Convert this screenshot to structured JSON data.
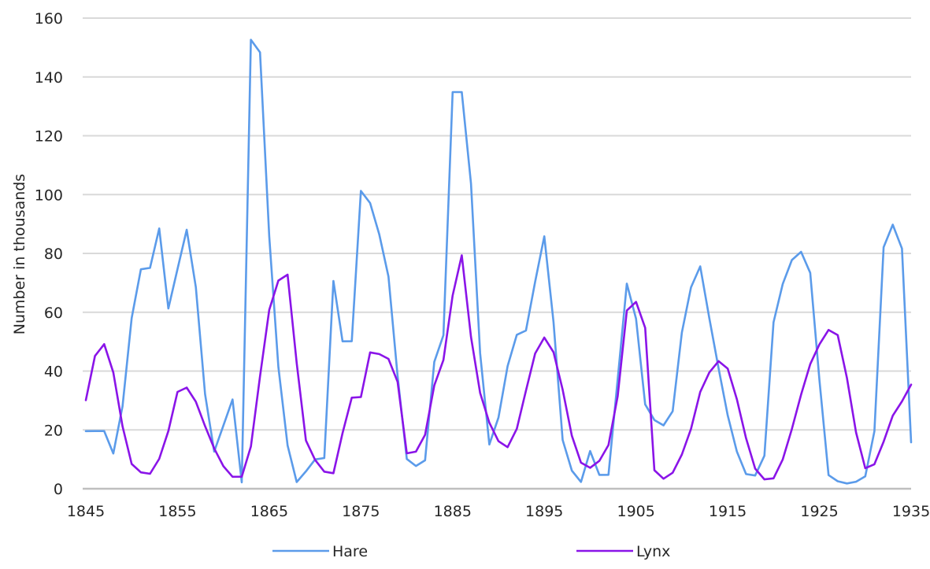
{
  "chart_data": {
    "type": "line",
    "title": "",
    "xlabel": "",
    "ylabel": "Number in thousands",
    "xlim": [
      1845,
      1935
    ],
    "ylim": [
      0,
      160
    ],
    "x_ticks": [
      "1845",
      "1855",
      "1865",
      "1875",
      "1885",
      "1895",
      "1905",
      "1915",
      "1925",
      "1935"
    ],
    "y_ticks": [
      "0",
      "20",
      "40",
      "60",
      "80",
      "100",
      "120",
      "140",
      "160"
    ],
    "grid": true,
    "legend_position": "bottom",
    "x": [
      1845,
      1846,
      1847,
      1848,
      1849,
      1850,
      1851,
      1852,
      1853,
      1854,
      1855,
      1856,
      1857,
      1858,
      1859,
      1860,
      1861,
      1862,
      1863,
      1864,
      1865,
      1866,
      1867,
      1868,
      1869,
      1870,
      1871,
      1872,
      1873,
      1874,
      1875,
      1876,
      1877,
      1878,
      1879,
      1880,
      1881,
      1882,
      1883,
      1884,
      1885,
      1886,
      1887,
      1888,
      1889,
      1890,
      1891,
      1892,
      1893,
      1894,
      1895,
      1896,
      1897,
      1898,
      1899,
      1900,
      1901,
      1902,
      1903,
      1904,
      1905,
      1906,
      1907,
      1908,
      1909,
      1910,
      1911,
      1912,
      1913,
      1914,
      1915,
      1916,
      1917,
      1918,
      1919,
      1920,
      1921,
      1922,
      1923,
      1924,
      1925,
      1926,
      1927,
      1928,
      1929,
      1930,
      1931,
      1932,
      1933,
      1934,
      1935
    ],
    "series": [
      {
        "name": "Hare",
        "color": "#5b9bea",
        "values": [
          19.58,
          19.6,
          19.61,
          11.99,
          28.04,
          58.0,
          74.6,
          75.09,
          88.48,
          61.28,
          74.67,
          88.06,
          68.51,
          32.19,
          12.64,
          21.49,
          30.35,
          2.18,
          152.65,
          148.36,
          85.81,
          41.41,
          14.75,
          2.28,
          5.91,
          9.95,
          10.44,
          70.64,
          50.12,
          50.13,
          101.25,
          97.12,
          86.51,
          72.17,
          38.32,
          10.11,
          7.74,
          9.67,
          43.12,
          52.21,
          134.85,
          134.86,
          103.79,
          46.1,
          15.03,
          24.2,
          41.65,
          52.34,
          53.78,
          70.4,
          85.81,
          56.69,
          16.59,
          6.16,
          2.3,
          12.82,
          4.72,
          4.73,
          37.22,
          69.72,
          57.78,
          28.68,
          23.37,
          21.54,
          26.34,
          53.1,
          68.48,
          75.58,
          57.92,
          40.97,
          24.95,
          12.59,
          4.97,
          4.5,
          11.21,
          56.6,
          69.63,
          77.74,
          80.53,
          73.38,
          36.93,
          4.64,
          2.54,
          1.8,
          2.39,
          4.23,
          19.52,
          82.11,
          89.76,
          81.66,
          15.76
        ]
      },
      {
        "name": "Lynx",
        "color": "#8a14e8",
        "values": [
          30.09,
          45.15,
          49.15,
          39.52,
          21.23,
          8.42,
          5.56,
          5.08,
          10.17,
          19.6,
          32.91,
          34.38,
          29.59,
          21.3,
          13.69,
          7.65,
          4.08,
          4.09,
          14.33,
          38.22,
          60.78,
          70.77,
          72.77,
          42.68,
          16.39,
          9.83,
          5.8,
          5.26,
          18.91,
          30.95,
          31.18,
          46.34,
          45.77,
          44.15,
          36.33,
          12.03,
          12.6,
          18.34,
          35.14,
          43.77,
          65.69,
          79.35,
          51.65,
          32.59,
          22.45,
          16.16,
          14.12,
          20.38,
          33.33,
          46.0,
          51.41,
          46.43,
          33.68,
          18.01,
          8.86,
          7.13,
          9.47,
          14.86,
          31.47,
          60.57,
          63.51,
          54.7,
          6.3,
          3.41,
          5.44,
          11.65,
          20.35,
          32.88,
          39.55,
          43.36,
          40.83,
          30.36,
          17.18,
          6.82,
          3.19,
          3.52,
          9.94,
          20.3,
          31.99,
          42.36,
          49.08,
          53.99,
          52.25,
          37.7,
          19.14,
          6.98,
          8.31,
          16.01,
          24.82,
          29.7,
          35.4
        ]
      }
    ]
  }
}
